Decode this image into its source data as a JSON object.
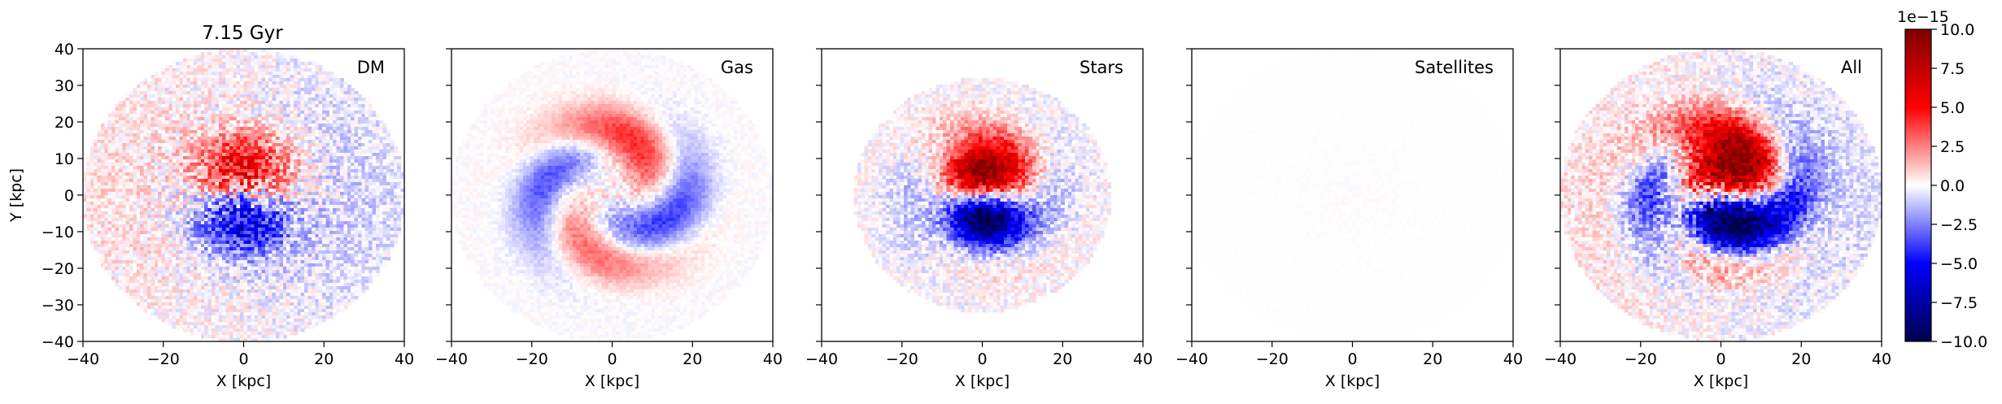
{
  "figure": {
    "title": "7.15 Gyr"
  },
  "chart_data": [
    {
      "type": "heatmap",
      "label": "DM",
      "xlabel": "X [kpc]",
      "ylabel": "Y [kpc]",
      "xlim": [
        -40,
        40
      ],
      "ylim": [
        -40,
        40
      ],
      "xticks": [
        "−40",
        "−20",
        "0",
        "20",
        "40"
      ],
      "yticks": [
        "40",
        "30",
        "20",
        "10",
        "0",
        "−10",
        "−20",
        "−30",
        "−40"
      ],
      "field": {
        "disk_radius": 40,
        "baseline": 0.8,
        "lobe": 1.2,
        "spiral": 0.0,
        "core_amp": 5.5,
        "core_radius": 8,
        "noise": 2.0,
        "seed": 11
      }
    },
    {
      "type": "heatmap",
      "label": "Gas",
      "xlabel": "X [kpc]",
      "ylabel": "",
      "xlim": [
        -40,
        40
      ],
      "ylim": [
        -40,
        40
      ],
      "xticks": [
        "−40",
        "−20",
        "0",
        "20",
        "40"
      ],
      "yticks": [],
      "field": {
        "disk_radius": 40,
        "baseline": 0.0,
        "lobe": 0.0,
        "spiral": 3.5,
        "core_amp": 1.0,
        "core_radius": 10,
        "noise": 0.6,
        "seed": 23
      }
    },
    {
      "type": "heatmap",
      "label": "Stars",
      "xlabel": "X [kpc]",
      "ylabel": "",
      "xlim": [
        -40,
        40
      ],
      "ylim": [
        -40,
        40
      ],
      "xticks": [
        "−40",
        "−20",
        "0",
        "20",
        "40"
      ],
      "yticks": [],
      "field": {
        "disk_radius": 32,
        "baseline": 0.0,
        "lobe": 0.0,
        "spiral": 1.2,
        "core_amp": 10.0,
        "core_radius": 7,
        "noise": 1.5,
        "seed": 37
      }
    },
    {
      "type": "heatmap",
      "label": "Satellites",
      "xlabel": "X [kpc]",
      "ylabel": "",
      "xlim": [
        -40,
        40
      ],
      "ylim": [
        -40,
        40
      ],
      "xticks": [
        "−40",
        "−20",
        "0",
        "20",
        "40"
      ],
      "yticks": [],
      "field": {
        "disk_radius": 40,
        "baseline": 0.0,
        "lobe": 0.0,
        "spiral": 0.0,
        "core_amp": 0.0,
        "core_radius": 10,
        "noise": 0.08,
        "seed": 41
      }
    },
    {
      "type": "heatmap",
      "label": "All",
      "xlabel": "X [kpc]",
      "ylabel": "",
      "xlim": [
        -40,
        40
      ],
      "ylim": [
        -40,
        40
      ],
      "xticks": [
        "−40",
        "−20",
        "0",
        "20",
        "40"
      ],
      "yticks": [],
      "field": {
        "disk_radius": 40,
        "baseline": 0.8,
        "lobe": 1.2,
        "spiral": 4.0,
        "core_amp": 10.0,
        "core_radius": 8,
        "noise": 2.0,
        "seed": 53
      }
    }
  ],
  "colorbar": {
    "colormap": "seismic",
    "range": [
      -10,
      10
    ],
    "ticks": [
      10,
      7.5,
      5,
      2.5,
      0,
      -2.5,
      -5,
      -7.5,
      -10
    ],
    "tick_labels": [
      "10.0",
      "7.5",
      "5.0",
      "2.5",
      "0.0",
      "−2.5",
      "−5.0",
      "−7.5",
      "−10.0"
    ],
    "offset_label": "1e−15",
    "colors": {
      "low": "#00004c",
      "mid_low": "#0000ff",
      "mid": "#ffffff",
      "mid_high": "#ff0000",
      "high": "#800000"
    }
  }
}
